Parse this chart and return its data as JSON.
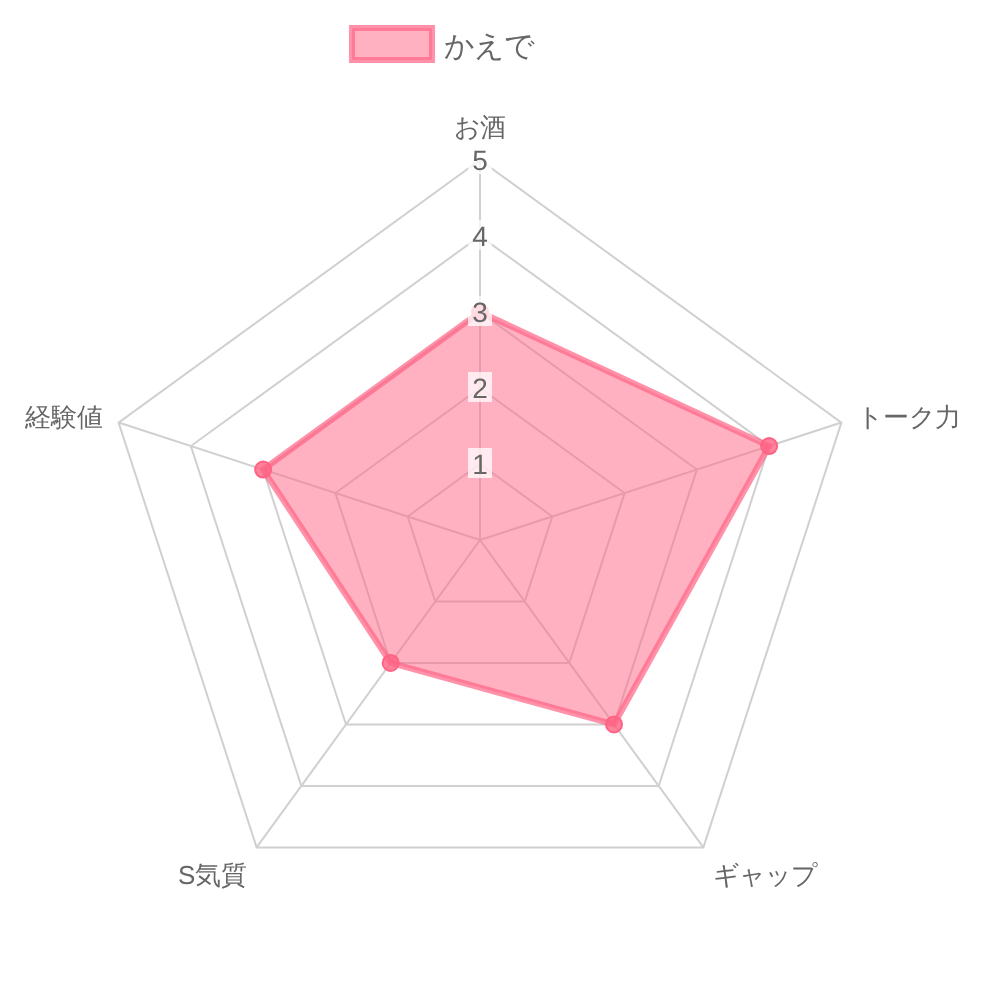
{
  "chart_data": {
    "type": "radar",
    "categories": [
      "お酒",
      "トーク力",
      "ギャップ",
      "S気質",
      "経験値"
    ],
    "series": [
      {
        "name": "かえで",
        "color": "#ff6384",
        "values": [
          3,
          4,
          3,
          2,
          3
        ]
      }
    ],
    "ylim": [
      0,
      5
    ],
    "yticks": [
      1,
      2,
      3,
      4,
      5
    ],
    "grid": true,
    "legend": "top",
    "marker": "circle",
    "line_style": "solid"
  }
}
